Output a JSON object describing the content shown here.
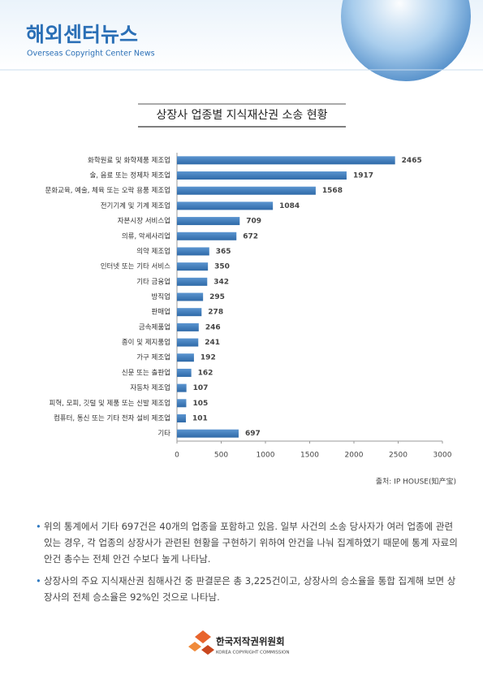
{
  "header": {
    "title": "해외센터뉴스",
    "subtitle": "Overseas Copyright Center News"
  },
  "chart_data": {
    "type": "bar",
    "orientation": "horizontal",
    "title": "상장사 업종별 지식재산권 소송 현황",
    "categories": [
      "화학원료 및 화학제품 제조업",
      "술, 음료 또는 정제차 제조업",
      "문화교육, 예술, 체육 또는 오락 용품 제조업",
      "전기기계 및 기계 제조업",
      "자본시장 서비스업",
      "의류, 악세사리업",
      "의약 제조업",
      "인터넷 또는 기타 서비스",
      "기타 금융업",
      "방직업",
      "판매업",
      "금속제품업",
      "종이 및 제지품업",
      "가구 제조업",
      "신문 또는 출판업",
      "자동차 제조업",
      "피혁, 모피, 깃털 및 제품 또는 신발 제조업",
      "컴퓨터, 통신 또는 기타 전자 설비 제조업",
      "기타"
    ],
    "values": [
      2465,
      1917,
      1568,
      1084,
      709,
      672,
      365,
      350,
      342,
      295,
      278,
      246,
      241,
      192,
      162,
      107,
      105,
      101,
      697
    ],
    "color": "#3a78b8",
    "xlim": [
      0,
      3000
    ],
    "xticks": [
      0,
      500,
      1000,
      1500,
      2000,
      2500,
      3000
    ]
  },
  "source": "출처: IP HOUSE(知产宝)",
  "bullets": [
    "위의 통계에서 기타 697건은 40개의 업종을 포함하고 있음. 일부 사건의 소송 당사자가 여러 업종에 관련 있는 경우, 각 업종의 상장사가 관련된 현황을 구현하기 위하여 안건을 나눠 집계하였기 때문에 통계 자료의 안건 총수는 전체 안건 수보다 높게 나타남.",
    "상장사의 주요 지식재산권 침해사건 중 판결문은 총 3,225건이고, 상장사의 승소율을 통합 집계해 보면 상장사의 전체 승소율은 92%인 것으로 나타남."
  ],
  "footer": {
    "org": "한국저작권위원회",
    "org_en": "KOREA COPYRIGHT COMMISSION"
  }
}
